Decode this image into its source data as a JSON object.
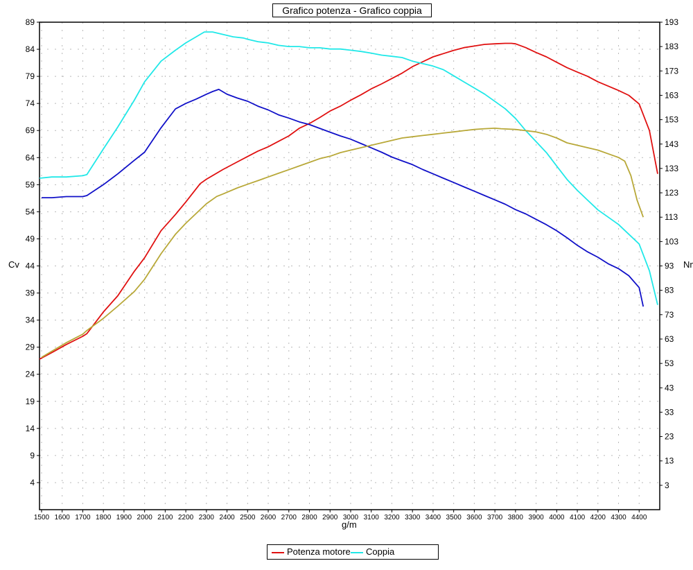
{
  "chart_data": {
    "type": "line",
    "title": "Grafico potenza - Grafico coppia",
    "xlabel": "g/m",
    "ylabel_left": "Cv",
    "ylabel_right": "Nm",
    "xlim": [
      1490,
      4500
    ],
    "ylim_left": [
      -1,
      89
    ],
    "ylim_right": [
      -7,
      193
    ],
    "x_ticks": [
      1500,
      1600,
      1700,
      1800,
      1900,
      2000,
      2100,
      2200,
      2300,
      2400,
      2500,
      2600,
      2700,
      2800,
      2900,
      3000,
      3100,
      3200,
      3300,
      3400,
      3500,
      3600,
      3700,
      3800,
      3900,
      4000,
      4100,
      4200,
      4300,
      4400
    ],
    "y_ticks_left": [
      4,
      9,
      14,
      19,
      24,
      29,
      34,
      39,
      44,
      49,
      54,
      59,
      64,
      69,
      74,
      79,
      84,
      89
    ],
    "y_ticks_right": [
      3,
      13,
      23,
      33,
      43,
      53,
      63,
      73,
      83,
      93,
      103,
      113,
      123,
      133,
      143,
      153,
      163,
      173,
      183,
      193
    ],
    "grid": true,
    "legend": [
      "Potenza motore",
      "Coppia"
    ],
    "series": [
      {
        "name": "Potenza motore",
        "axis": "left",
        "color": "#e01010",
        "x": [
          1490,
          1550,
          1620,
          1700,
          1720,
          1800,
          1870,
          1950,
          2000,
          2080,
          2150,
          2200,
          2270,
          2300,
          2380,
          2450,
          2500,
          2550,
          2600,
          2650,
          2700,
          2750,
          2800,
          2850,
          2900,
          2950,
          3000,
          3050,
          3100,
          3150,
          3200,
          3250,
          3300,
          3350,
          3400,
          3450,
          3500,
          3550,
          3600,
          3650,
          3700,
          3750,
          3780,
          3800,
          3850,
          3900,
          3950,
          4000,
          4050,
          4100,
          4150,
          4200,
          4250,
          4300,
          4350,
          4400,
          4450,
          4490
        ],
        "values": [
          26.8,
          28,
          29.5,
          31,
          31.5,
          35.5,
          38.5,
          43,
          45.5,
          50.5,
          53.5,
          55.8,
          59.2,
          60,
          61.8,
          63.2,
          64.2,
          65.2,
          66,
          67,
          68,
          69.4,
          70.3,
          71.4,
          72.6,
          73.5,
          74.6,
          75.6,
          76.7,
          77.6,
          78.6,
          79.6,
          80.8,
          81.7,
          82.6,
          83.2,
          83.8,
          84.3,
          84.6,
          84.9,
          85,
          85.1,
          85.1,
          85,
          84.3,
          83.4,
          82.6,
          81.6,
          80.6,
          79.8,
          79,
          78,
          77.2,
          76.4,
          75.5,
          73.9,
          69,
          61
        ]
      },
      {
        "name": "Coppia",
        "axis": "right",
        "color": "#20e8e8",
        "x": [
          1490,
          1550,
          1620,
          1700,
          1720,
          1800,
          1870,
          1950,
          2000,
          2080,
          2150,
          2200,
          2250,
          2290,
          2330,
          2380,
          2430,
          2480,
          2500,
          2550,
          2600,
          2650,
          2700,
          2750,
          2800,
          2850,
          2900,
          2950,
          3000,
          3050,
          3100,
          3150,
          3200,
          3250,
          3300,
          3350,
          3400,
          3450,
          3500,
          3550,
          3600,
          3650,
          3700,
          3750,
          3800,
          3850,
          3900,
          3950,
          4000,
          4050,
          4100,
          4150,
          4200,
          4250,
          4300,
          4350,
          4400,
          4450,
          4490
        ],
        "values": [
          129,
          129.5,
          129.5,
          130,
          130.5,
          141,
          150,
          161,
          168.5,
          177,
          181.5,
          184.5,
          187,
          189,
          189,
          188,
          187,
          186.5,
          186,
          185,
          184.5,
          183.5,
          183,
          183,
          182.5,
          182.5,
          182,
          182,
          181.5,
          181,
          180.3,
          179.5,
          179,
          178.5,
          177,
          176,
          175,
          173.5,
          171,
          168.5,
          166,
          163.5,
          160.5,
          157.5,
          153.5,
          148.5,
          144,
          139.5,
          134,
          128.5,
          124,
          120,
          116,
          113,
          110,
          106,
          102,
          91,
          77
        ]
      },
      {
        "name": "",
        "axis": "left",
        "color": "#1010c8",
        "x": [
          1500,
          1550,
          1620,
          1700,
          1720,
          1800,
          1870,
          1950,
          2000,
          2080,
          2150,
          2200,
          2250,
          2300,
          2330,
          2360,
          2400,
          2450,
          2500,
          2550,
          2600,
          2650,
          2700,
          2750,
          2800,
          2850,
          2900,
          2950,
          3000,
          3050,
          3100,
          3150,
          3200,
          3250,
          3300,
          3350,
          3400,
          3450,
          3500,
          3550,
          3600,
          3650,
          3700,
          3750,
          3800,
          3850,
          3900,
          3950,
          4000,
          4050,
          4100,
          4150,
          4200,
          4250,
          4300,
          4350,
          4400,
          4420
        ],
        "values": [
          56.6,
          56.6,
          56.8,
          56.8,
          57,
          59,
          61,
          63.5,
          65,
          69.5,
          73,
          74,
          74.8,
          75.7,
          76.2,
          76.6,
          75.7,
          75,
          74.4,
          73.5,
          72.8,
          71.9,
          71.3,
          70.6,
          70.1,
          69.4,
          68.7,
          68,
          67.4,
          66.6,
          65.8,
          65,
          64.1,
          63.4,
          62.7,
          61.8,
          61,
          60.2,
          59.4,
          58.6,
          57.8,
          57,
          56.2,
          55.4,
          54.4,
          53.6,
          52.6,
          51.6,
          50.5,
          49.2,
          47.8,
          46.6,
          45.6,
          44.4,
          43.5,
          42.2,
          40,
          36.5
        ]
      },
      {
        "name": "",
        "axis": "right",
        "color": "#b8a838",
        "x": [
          1500,
          1550,
          1620,
          1700,
          1720,
          1800,
          1870,
          1950,
          2000,
          2080,
          2150,
          2200,
          2250,
          2300,
          2350,
          2380,
          2450,
          2500,
          2550,
          2600,
          2650,
          2700,
          2750,
          2800,
          2850,
          2900,
          2950,
          3000,
          3050,
          3100,
          3150,
          3200,
          3250,
          3300,
          3350,
          3400,
          3450,
          3500,
          3550,
          3600,
          3650,
          3700,
          3730,
          3800,
          3850,
          3900,
          3950,
          4000,
          4050,
          4100,
          4150,
          4200,
          4250,
          4300,
          4330,
          4360,
          4390,
          4420
        ],
        "values": [
          55.5,
          58,
          61.5,
          65,
          66.5,
          71.5,
          76.5,
          82.5,
          87.5,
          98,
          106,
          110.5,
          114.5,
          118.5,
          121.5,
          122.5,
          125,
          126.5,
          128,
          129.5,
          131,
          132.5,
          134,
          135.5,
          137,
          138,
          139.5,
          140.5,
          141.5,
          142.5,
          143.5,
          144.5,
          145.5,
          146,
          146.5,
          147,
          147.5,
          148,
          148.5,
          149,
          149.3,
          149.5,
          149.3,
          149,
          148.5,
          148,
          147,
          145.5,
          143.5,
          142.5,
          141.5,
          140.5,
          139,
          137.5,
          136,
          130,
          120,
          113
        ]
      }
    ]
  }
}
